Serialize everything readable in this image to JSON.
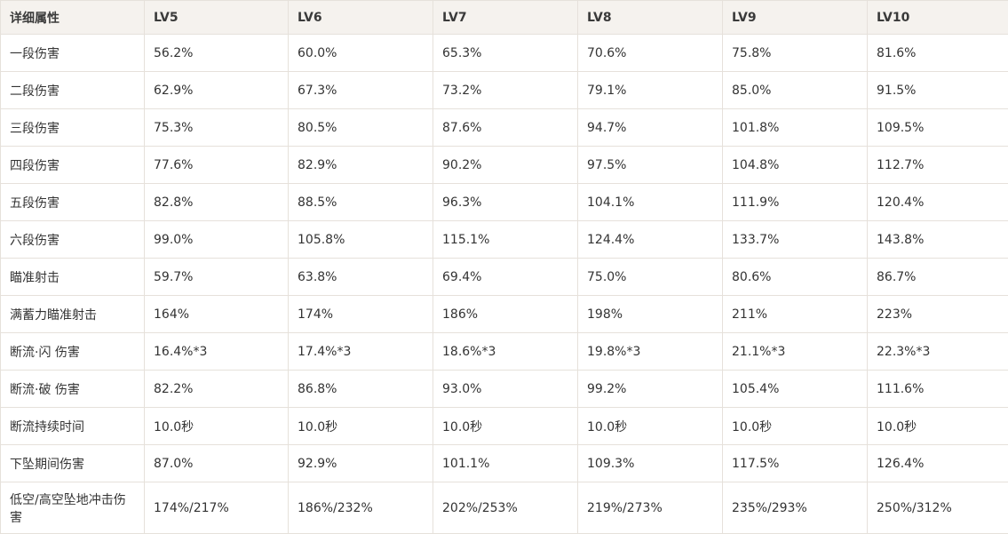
{
  "table": {
    "header": [
      "详细属性",
      "LV5",
      "LV6",
      "LV7",
      "LV8",
      "LV9",
      "LV10"
    ],
    "rows": [
      [
        "一段伤害",
        "56.2%",
        "60.0%",
        "65.3%",
        "70.6%",
        "75.8%",
        "81.6%"
      ],
      [
        "二段伤害",
        "62.9%",
        "67.3%",
        "73.2%",
        "79.1%",
        "85.0%",
        "91.5%"
      ],
      [
        "三段伤害",
        "75.3%",
        "80.5%",
        "87.6%",
        "94.7%",
        "101.8%",
        "109.5%"
      ],
      [
        "四段伤害",
        "77.6%",
        "82.9%",
        "90.2%",
        "97.5%",
        "104.8%",
        "112.7%"
      ],
      [
        "五段伤害",
        "82.8%",
        "88.5%",
        "96.3%",
        "104.1%",
        "111.9%",
        "120.4%"
      ],
      [
        "六段伤害",
        "99.0%",
        "105.8%",
        "115.1%",
        "124.4%",
        "133.7%",
        "143.8%"
      ],
      [
        "瞄准射击",
        "59.7%",
        "63.8%",
        "69.4%",
        "75.0%",
        "80.6%",
        "86.7%"
      ],
      [
        "满蓄力瞄准射击",
        "164%",
        "174%",
        "186%",
        "198%",
        "211%",
        "223%"
      ],
      [
        "断流·闪 伤害",
        "16.4%*3",
        "17.4%*3",
        "18.6%*3",
        "19.8%*3",
        "21.1%*3",
        "22.3%*3"
      ],
      [
        "断流·破 伤害",
        "82.2%",
        "86.8%",
        "93.0%",
        "99.2%",
        "105.4%",
        "111.6%"
      ],
      [
        "断流持续时间",
        "10.0秒",
        "10.0秒",
        "10.0秒",
        "10.0秒",
        "10.0秒",
        "10.0秒"
      ],
      [
        "下坠期间伤害",
        "87.0%",
        "92.9%",
        "101.1%",
        "109.3%",
        "117.5%",
        "126.4%"
      ],
      [
        "低空/高空坠地冲击伤害",
        "174%/217%",
        "186%/232%",
        "202%/253%",
        "219%/273%",
        "235%/293%",
        "250%/312%"
      ]
    ]
  }
}
